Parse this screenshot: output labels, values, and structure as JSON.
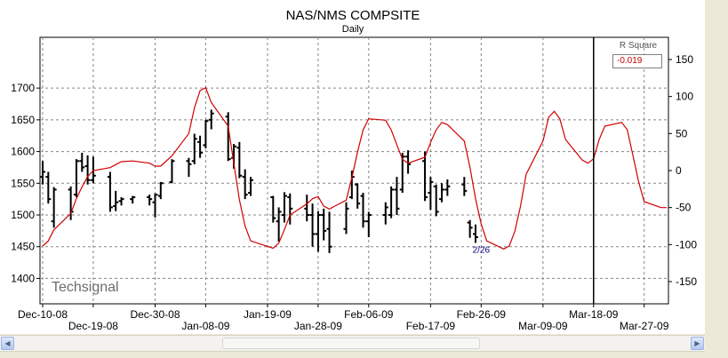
{
  "chart_data": {
    "type": "line",
    "title": "NAS/NMS COMPSITE",
    "subtitle": "Daily",
    "watermark": "Techsignal",
    "left_axis": {
      "ticks": [
        1400,
        1450,
        1500,
        1550,
        1600,
        1650,
        1700
      ],
      "range": [
        1360,
        1780
      ]
    },
    "right_axis": {
      "ticks": [
        -150,
        -100,
        -50,
        0,
        50,
        100,
        150
      ],
      "range": [
        -180,
        180
      ]
    },
    "x_ticks": {
      "upper": [
        "Dec-10-08",
        "Dec-30-08",
        "Jan-19-09",
        "Feb-06-09",
        "Feb-26-09",
        "Mar-18-09"
      ],
      "lower": [
        "Dec-19-08",
        "Jan-08-09",
        "Jan-28-09",
        "Feb-17-09",
        "Mar-09-09",
        "Mar-27-09"
      ]
    },
    "grid": true,
    "colors": {
      "cycle_line": "#d10000",
      "bars": "#000000",
      "grid": "#888888",
      "marker": "#000000",
      "annotation": "#000080"
    },
    "r_square": {
      "label": "R Square",
      "value": "-0.019"
    },
    "annotation": {
      "text": "2/26",
      "x": "Feb-26-09"
    },
    "current_marker_x": "Mar-18-09",
    "price_bars": [
      {
        "d": "Dec-10-08",
        "h": 1585,
        "l": 1548,
        "o": 1560,
        "c": 1568
      },
      {
        "d": "Dec-11-08",
        "h": 1568,
        "l": 1518,
        "o": 1560,
        "c": 1525
      },
      {
        "d": "Dec-12-08",
        "h": 1544,
        "l": 1480,
        "o": 1490,
        "c": 1540
      },
      {
        "d": "Dec-15-08",
        "h": 1545,
        "l": 1492,
        "o": 1540,
        "c": 1505
      },
      {
        "d": "Dec-16-08",
        "h": 1588,
        "l": 1528,
        "o": 1532,
        "c": 1585
      },
      {
        "d": "Dec-17-08",
        "h": 1598,
        "l": 1568,
        "o": 1585,
        "c": 1575
      },
      {
        "d": "Dec-18-08",
        "h": 1594,
        "l": 1548,
        "o": 1577,
        "c": 1555
      },
      {
        "d": "Dec-19-08",
        "h": 1592,
        "l": 1550,
        "o": 1555,
        "c": 1562
      },
      {
        "d": "Dec-22-08",
        "h": 1568,
        "l": 1505,
        "o": 1560,
        "c": 1512
      },
      {
        "d": "Dec-23-08",
        "h": 1538,
        "l": 1506,
        "o": 1514,
        "c": 1520
      },
      {
        "d": "Dec-24-08",
        "h": 1528,
        "l": 1515,
        "o": 1522,
        "c": 1525
      },
      {
        "d": "Dec-26-08",
        "h": 1530,
        "l": 1518,
        "o": 1525,
        "c": 1528
      },
      {
        "d": "Dec-29-08",
        "h": 1532,
        "l": 1515,
        "o": 1528,
        "c": 1525
      },
      {
        "d": "Dec-30-08",
        "h": 1534,
        "l": 1496,
        "o": 1520,
        "c": 1532
      },
      {
        "d": "Dec-31-08",
        "h": 1552,
        "l": 1525,
        "o": 1530,
        "c": 1550
      },
      {
        "d": "Jan-02-09",
        "h": 1588,
        "l": 1550,
        "o": 1552,
        "c": 1585
      },
      {
        "d": "Jan-05-09",
        "h": 1590,
        "l": 1560,
        "o": 1585,
        "c": 1580
      },
      {
        "d": "Jan-06-09",
        "h": 1628,
        "l": 1580,
        "o": 1585,
        "c": 1620
      },
      {
        "d": "Jan-07-09",
        "h": 1625,
        "l": 1590,
        "o": 1615,
        "c": 1598
      },
      {
        "d": "Jan-08-09",
        "h": 1650,
        "l": 1605,
        "o": 1610,
        "c": 1648
      },
      {
        "d": "Jan-09-09",
        "h": 1666,
        "l": 1635,
        "o": 1650,
        "c": 1660
      },
      {
        "d": "Jan-12-09",
        "h": 1662,
        "l": 1585,
        "o": 1655,
        "c": 1588
      },
      {
        "d": "Jan-13-09",
        "h": 1612,
        "l": 1573,
        "o": 1590,
        "c": 1608
      },
      {
        "d": "Jan-14-09",
        "h": 1615,
        "l": 1558,
        "o": 1606,
        "c": 1562
      },
      {
        "d": "Jan-15-09",
        "h": 1572,
        "l": 1525,
        "o": 1560,
        "c": 1532
      },
      {
        "d": "Jan-16-09",
        "h": 1560,
        "l": 1530,
        "o": 1535,
        "c": 1555
      },
      {
        "d": "Jan-20-09",
        "h": 1530,
        "l": 1488,
        "o": 1528,
        "c": 1495
      },
      {
        "d": "Jan-21-09",
        "h": 1512,
        "l": 1458,
        "o": 1490,
        "c": 1505
      },
      {
        "d": "Jan-22-09",
        "h": 1536,
        "l": 1488,
        "o": 1500,
        "c": 1530
      },
      {
        "d": "Jan-23-09",
        "h": 1534,
        "l": 1485,
        "o": 1528,
        "c": 1510
      },
      {
        "d": "Jan-26-09",
        "h": 1532,
        "l": 1490,
        "o": 1510,
        "c": 1500
      },
      {
        "d": "Jan-27-09",
        "h": 1518,
        "l": 1450,
        "o": 1500,
        "c": 1470
      },
      {
        "d": "Jan-28-09",
        "h": 1506,
        "l": 1442,
        "o": 1470,
        "c": 1500
      },
      {
        "d": "Jan-29-09",
        "h": 1510,
        "l": 1460,
        "o": 1500,
        "c": 1475
      },
      {
        "d": "Jan-30-09",
        "h": 1505,
        "l": 1440,
        "o": 1478,
        "c": 1450
      },
      {
        "d": "Feb-02-09",
        "h": 1520,
        "l": 1470,
        "o": 1478,
        "c": 1510
      },
      {
        "d": "Feb-03-09",
        "h": 1570,
        "l": 1525,
        "o": 1528,
        "c": 1560
      },
      {
        "d": "Feb-04-09",
        "h": 1550,
        "l": 1510,
        "o": 1548,
        "c": 1518
      },
      {
        "d": "Feb-05-09",
        "h": 1535,
        "l": 1480,
        "o": 1530,
        "c": 1490
      },
      {
        "d": "Feb-06-09",
        "h": 1505,
        "l": 1465,
        "o": 1490,
        "c": 1500
      },
      {
        "d": "Feb-09-09",
        "h": 1520,
        "l": 1485,
        "o": 1500,
        "c": 1512
      },
      {
        "d": "Feb-10-09",
        "h": 1545,
        "l": 1495,
        "o": 1500,
        "c": 1540
      },
      {
        "d": "Feb-11-09",
        "h": 1560,
        "l": 1500,
        "o": 1540,
        "c": 1510
      },
      {
        "d": "Feb-12-09",
        "h": 1598,
        "l": 1535,
        "o": 1540,
        "c": 1592
      },
      {
        "d": "Feb-13-09",
        "h": 1602,
        "l": 1565,
        "o": 1592,
        "c": 1580
      },
      {
        "d": "Feb-16-09",
        "h": 1600,
        "l": 1522,
        "o": 1585,
        "c": 1528
      },
      {
        "d": "Feb-17-09",
        "h": 1560,
        "l": 1508,
        "o": 1535,
        "c": 1552
      },
      {
        "d": "Feb-18-09",
        "h": 1548,
        "l": 1498,
        "o": 1545,
        "c": 1505
      },
      {
        "d": "Feb-19-09",
        "h": 1550,
        "l": 1520,
        "o": 1525,
        "c": 1540
      },
      {
        "d": "Feb-20-09",
        "h": 1556,
        "l": 1530,
        "o": 1540,
        "c": 1545
      },
      {
        "d": "Feb-23-09",
        "h": 1560,
        "l": 1530,
        "o": 1548,
        "c": 1538
      },
      {
        "d": "Feb-24-09",
        "h": 1492,
        "l": 1464,
        "o": 1488,
        "c": 1480
      },
      {
        "d": "Feb-25-09",
        "h": 1485,
        "l": 1456,
        "o": 1470,
        "c": 1465
      }
    ],
    "cycle_line": [
      {
        "d": "Dec-10-08",
        "v": -102
      },
      {
        "d": "Dec-11-08",
        "v": -95
      },
      {
        "d": "Dec-12-08",
        "v": -80
      },
      {
        "d": "Dec-15-08",
        "v": -58
      },
      {
        "d": "Dec-16-08",
        "v": -38
      },
      {
        "d": "Dec-17-08",
        "v": -22
      },
      {
        "d": "Dec-18-08",
        "v": -8
      },
      {
        "d": "Dec-19-08",
        "v": 0
      },
      {
        "d": "Dec-22-08",
        "v": 4
      },
      {
        "d": "Dec-23-08",
        "v": 8
      },
      {
        "d": "Dec-24-08",
        "v": 12
      },
      {
        "d": "Dec-26-08",
        "v": 13
      },
      {
        "d": "Dec-29-08",
        "v": 10
      },
      {
        "d": "Dec-30-08",
        "v": 6
      },
      {
        "d": "Dec-31-08",
        "v": 6
      },
      {
        "d": "Jan-02-09",
        "v": 20
      },
      {
        "d": "Jan-05-09",
        "v": 50
      },
      {
        "d": "Jan-06-09",
        "v": 85
      },
      {
        "d": "Jan-07-09",
        "v": 108
      },
      {
        "d": "Jan-08-09",
        "v": 112
      },
      {
        "d": "Jan-09-09",
        "v": 92
      },
      {
        "d": "Jan-12-09",
        "v": 60
      },
      {
        "d": "Jan-13-09",
        "v": 10
      },
      {
        "d": "Jan-14-09",
        "v": -40
      },
      {
        "d": "Jan-15-09",
        "v": -75
      },
      {
        "d": "Jan-16-09",
        "v": -95
      },
      {
        "d": "Jan-20-09",
        "v": -105
      },
      {
        "d": "Jan-21-09",
        "v": -98
      },
      {
        "d": "Jan-22-09",
        "v": -80
      },
      {
        "d": "Jan-23-09",
        "v": -60
      },
      {
        "d": "Jan-26-09",
        "v": -45
      },
      {
        "d": "Jan-27-09",
        "v": -38
      },
      {
        "d": "Jan-28-09",
        "v": -35
      },
      {
        "d": "Jan-29-09",
        "v": -48
      },
      {
        "d": "Jan-30-09",
        "v": -52
      },
      {
        "d": "Feb-02-09",
        "v": -40
      },
      {
        "d": "Feb-03-09",
        "v": -10
      },
      {
        "d": "Feb-04-09",
        "v": 25
      },
      {
        "d": "Feb-05-09",
        "v": 55
      },
      {
        "d": "Feb-06-09",
        "v": 70
      },
      {
        "d": "Feb-09-09",
        "v": 68
      },
      {
        "d": "Feb-10-09",
        "v": 55
      },
      {
        "d": "Feb-11-09",
        "v": 35
      },
      {
        "d": "Feb-12-09",
        "v": 15
      },
      {
        "d": "Feb-13-09",
        "v": 10
      },
      {
        "d": "Feb-16-09",
        "v": 18
      },
      {
        "d": "Feb-17-09",
        "v": 38
      },
      {
        "d": "Feb-18-09",
        "v": 55
      },
      {
        "d": "Feb-19-09",
        "v": 65
      },
      {
        "d": "Feb-20-09",
        "v": 62
      },
      {
        "d": "Feb-23-09",
        "v": 40
      },
      {
        "d": "Feb-24-09",
        "v": 5
      },
      {
        "d": "Feb-25-09",
        "v": -38
      },
      {
        "d": "Feb-26-09",
        "v": -72
      },
      {
        "d": "Feb-27-09",
        "v": -95
      },
      {
        "d": "Mar-02-09",
        "v": -106
      },
      {
        "d": "Mar-03-09",
        "v": -102
      },
      {
        "d": "Mar-04-09",
        "v": -82
      },
      {
        "d": "Mar-05-09",
        "v": -48
      },
      {
        "d": "Mar-06-09",
        "v": -5
      },
      {
        "d": "Mar-09-09",
        "v": 40
      },
      {
        "d": "Mar-10-09",
        "v": 72
      },
      {
        "d": "Mar-11-09",
        "v": 80
      },
      {
        "d": "Mar-12-09",
        "v": 70
      },
      {
        "d": "Mar-13-09",
        "v": 42
      },
      {
        "d": "Mar-16-09",
        "v": 14
      },
      {
        "d": "Mar-17-09",
        "v": 10
      },
      {
        "d": "Mar-18-09",
        "v": 16
      },
      {
        "d": "Mar-19-09",
        "v": 42
      },
      {
        "d": "Mar-20-09",
        "v": 60
      },
      {
        "d": "Mar-23-09",
        "v": 65
      },
      {
        "d": "Mar-24-09",
        "v": 55
      },
      {
        "d": "Mar-25-09",
        "v": 20
      },
      {
        "d": "Mar-26-09",
        "v": -15
      },
      {
        "d": "Mar-27-09",
        "v": -42
      },
      {
        "d": "Mar-30-09",
        "v": -50
      },
      {
        "d": "Mar-31-09",
        "v": -50
      }
    ]
  }
}
